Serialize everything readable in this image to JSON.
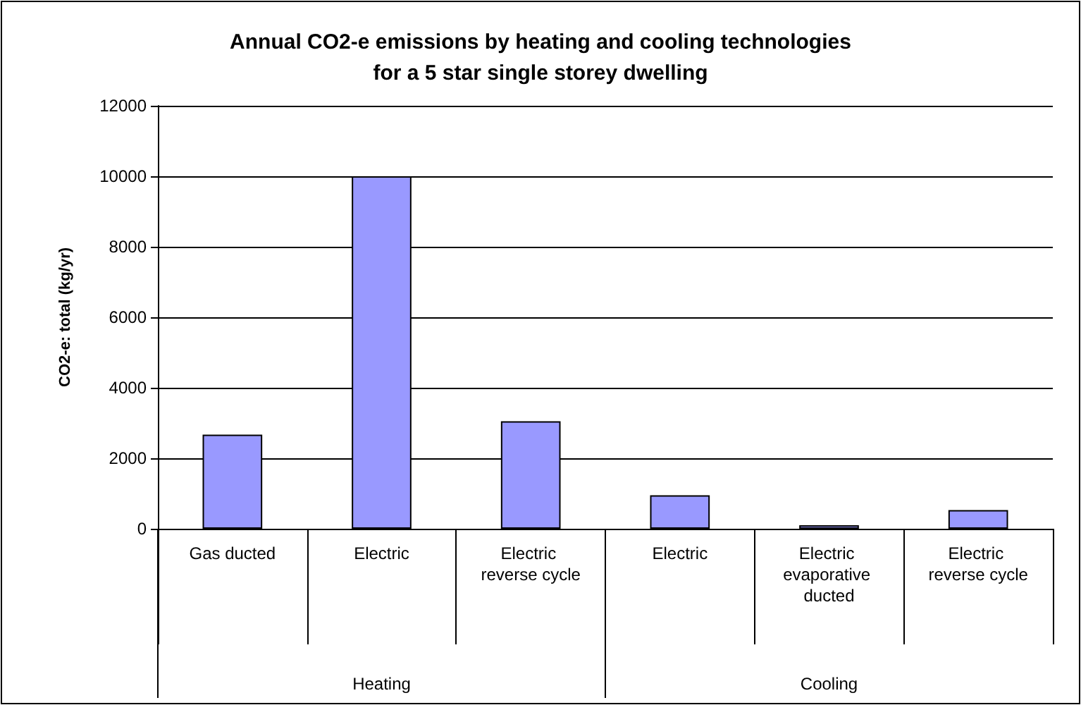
{
  "chart_data": {
    "type": "bar",
    "title": "Annual CO2-e emissions by heating and cooling technologies\nfor a 5 star single storey dwelling",
    "ylabel": "CO2-e: total (kg/yr)",
    "categories": [
      "Gas ducted",
      "Electric",
      "Electric reverse cycle",
      "Electric",
      "Electric evaporative ducted",
      "Electric reverse cycle"
    ],
    "values": [
      2670,
      10000,
      3050,
      950,
      100,
      530
    ],
    "color": "#9999ff",
    "ylim": [
      0,
      12000
    ],
    "yticks": [
      0,
      2000,
      4000,
      6000,
      8000,
      10000,
      12000
    ],
    "grid": "y",
    "annotations": [
      "Heating",
      "Cooling"
    ]
  }
}
